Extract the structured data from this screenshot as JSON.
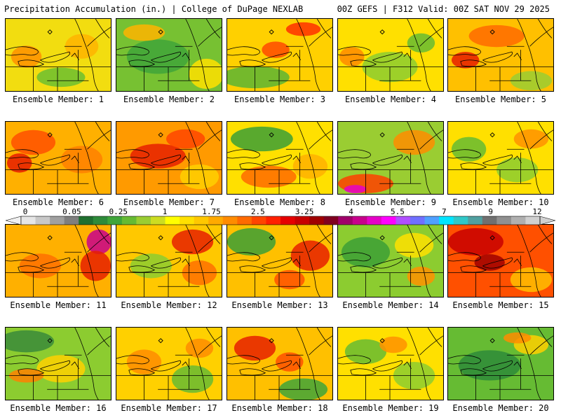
{
  "header": {
    "title": "Precipitation Accumulation (in.) | College of DuPage NEXLAB",
    "run_info": "00Z GEFS | F312 Valid: 00Z SAT NOV 29 2025"
  },
  "colorbar": {
    "labels": [
      "0",
      "0.05",
      "0.25",
      "1",
      "1.75",
      "2.5",
      "3.25",
      "4",
      "5.5",
      "7",
      "9",
      "12"
    ],
    "colors": [
      "#e6e6e6",
      "#c8c8c8",
      "#a0a0a0",
      "#7f7f7f",
      "#1f6f2f",
      "#2e8b3a",
      "#3fa53a",
      "#66bb33",
      "#9acd32",
      "#ccdd22",
      "#ffff00",
      "#ffe100",
      "#ffc800",
      "#ffaa00",
      "#ff8c00",
      "#ff6a00",
      "#ff4500",
      "#ff2000",
      "#e60000",
      "#c80000",
      "#a00000",
      "#800020",
      "#a0006a",
      "#c8008c",
      "#e600c8",
      "#ff00ff",
      "#b050ff",
      "#7070ff",
      "#50a0ff",
      "#00e5ff",
      "#30c8c8",
      "#50a0a0",
      "#707070",
      "#909090",
      "#b0b0b0",
      "#d0d0d0"
    ]
  },
  "members": [
    {
      "label": "Ensemble Member: 1",
      "base": "#f2dd10",
      "blobs": [
        [
          "#ff9000",
          30,
          55,
          22,
          16
        ],
        [
          "#6cc030",
          80,
          85,
          35,
          14
        ],
        [
          "#ffb400",
          110,
          40,
          24,
          18
        ]
      ]
    },
    {
      "label": "Ensemble Member: 2",
      "base": "#77c132",
      "blobs": [
        [
          "#3fa53a",
          60,
          55,
          45,
          25
        ],
        [
          "#ffe100",
          130,
          80,
          25,
          22
        ],
        [
          "#ffb400",
          40,
          20,
          30,
          12
        ]
      ]
    },
    {
      "label": "Ensemble Member: 3",
      "base": "#ffd000",
      "blobs": [
        [
          "#5cb534",
          40,
          85,
          50,
          16
        ],
        [
          "#ff4a00",
          70,
          45,
          20,
          12
        ],
        [
          "#ff3000",
          110,
          15,
          25,
          10
        ]
      ]
    },
    {
      "label": "Ensemble Member: 4",
      "base": "#ffe000",
      "blobs": [
        [
          "#8ccc30",
          75,
          70,
          40,
          22
        ],
        [
          "#ff8a00",
          20,
          55,
          18,
          14
        ],
        [
          "#66bb33",
          120,
          35,
          20,
          14
        ]
      ]
    },
    {
      "label": "Ensemble Member: 5",
      "base": "#ffc000",
      "blobs": [
        [
          "#ff6a00",
          70,
          25,
          40,
          16
        ],
        [
          "#e61c00",
          25,
          60,
          20,
          12
        ],
        [
          "#9acd32",
          120,
          90,
          30,
          14
        ]
      ]
    },
    {
      "label": "Ensemble Member: 6",
      "base": "#ffb000",
      "blobs": [
        [
          "#ff5000",
          40,
          30,
          32,
          18
        ],
        [
          "#e61c00",
          20,
          60,
          18,
          14
        ],
        [
          "#ff8000",
          110,
          55,
          30,
          20
        ]
      ]
    },
    {
      "label": "Ensemble Member: 7",
      "base": "#ff9a00",
      "blobs": [
        [
          "#e62000",
          60,
          50,
          40,
          18
        ],
        [
          "#ffd000",
          120,
          80,
          28,
          18
        ],
        [
          "#ff4500",
          100,
          25,
          28,
          14
        ]
      ]
    },
    {
      "label": "Ensemble Member: 8",
      "base": "#ffe000",
      "blobs": [
        [
          "#3c9f36",
          50,
          25,
          45,
          18
        ],
        [
          "#ff6a00",
          60,
          80,
          40,
          16
        ],
        [
          "#ffb000",
          120,
          65,
          25,
          18
        ]
      ]
    },
    {
      "label": "Ensemble Member: 9",
      "base": "#9acd32",
      "blobs": [
        [
          "#ff4000",
          40,
          90,
          40,
          14
        ],
        [
          "#e600c8",
          25,
          98,
          16,
          6
        ],
        [
          "#ff8c00",
          110,
          30,
          30,
          18
        ]
      ]
    },
    {
      "label": "Ensemble Member: 10",
      "base": "#ffe000",
      "blobs": [
        [
          "#66bb33",
          30,
          40,
          25,
          18
        ],
        [
          "#8ccc30",
          100,
          70,
          30,
          18
        ],
        [
          "#ff9000",
          120,
          25,
          25,
          14
        ]
      ]
    },
    {
      "label": "Ensemble Member: 11",
      "base": "#ffb000",
      "blobs": [
        [
          "#c8008c",
          135,
          25,
          18,
          18
        ],
        [
          "#e62000",
          130,
          60,
          22,
          22
        ],
        [
          "#ff7000",
          50,
          60,
          30,
          18
        ]
      ]
    },
    {
      "label": "Ensemble Member: 12",
      "base": "#ffc800",
      "blobs": [
        [
          "#e62000",
          110,
          25,
          30,
          18
        ],
        [
          "#ff7000",
          120,
          70,
          25,
          18
        ],
        [
          "#8ccc30",
          50,
          60,
          30,
          18
        ]
      ]
    },
    {
      "label": "Ensemble Member: 13",
      "base": "#ffc000",
      "blobs": [
        [
          "#3c9f36",
          35,
          25,
          35,
          20
        ],
        [
          "#e62000",
          120,
          45,
          28,
          22
        ],
        [
          "#ff5000",
          90,
          80,
          22,
          14
        ]
      ]
    },
    {
      "label": "Ensemble Member: 14",
      "base": "#8ccc30",
      "blobs": [
        [
          "#3c9f36",
          40,
          40,
          35,
          22
        ],
        [
          "#ffe000",
          110,
          30,
          28,
          18
        ],
        [
          "#ff9000",
          120,
          75,
          20,
          14
        ]
      ]
    },
    {
      "label": "Ensemble Member: 15",
      "base": "#ff5000",
      "blobs": [
        [
          "#c80000",
          40,
          25,
          40,
          20
        ],
        [
          "#ffc000",
          120,
          80,
          30,
          18
        ],
        [
          "#a00000",
          60,
          55,
          22,
          12
        ]
      ]
    },
    {
      "label": "Ensemble Member: 16",
      "base": "#8ccc30",
      "blobs": [
        [
          "#3a8a3a",
          30,
          20,
          40,
          16
        ],
        [
          "#ffd000",
          80,
          60,
          35,
          20
        ],
        [
          "#ff8000",
          30,
          70,
          25,
          10
        ]
      ]
    },
    {
      "label": "Ensemble Member: 17",
      "base": "#ffd000",
      "blobs": [
        [
          "#ff8c00",
          40,
          50,
          25,
          18
        ],
        [
          "#66bb33",
          110,
          75,
          30,
          20
        ],
        [
          "#ff8c00",
          120,
          30,
          20,
          14
        ]
      ]
    },
    {
      "label": "Ensemble Member: 18",
      "base": "#ffc000",
      "blobs": [
        [
          "#e62000",
          40,
          30,
          30,
          18
        ],
        [
          "#3fa53a",
          110,
          90,
          35,
          16
        ],
        [
          "#ff5000",
          90,
          50,
          20,
          14
        ]
      ]
    },
    {
      "label": "Ensemble Member: 19",
      "base": "#ffe000",
      "blobs": [
        [
          "#66bb33",
          40,
          35,
          30,
          18
        ],
        [
          "#8ccc30",
          110,
          70,
          30,
          20
        ],
        [
          "#ff9000",
          80,
          25,
          20,
          12
        ]
      ]
    },
    {
      "label": "Ensemble Member: 20",
      "base": "#66bb33",
      "blobs": [
        [
          "#2e8b3a",
          60,
          55,
          45,
          22
        ],
        [
          "#ffd000",
          120,
          25,
          25,
          14
        ],
        [
          "#ff8c00",
          100,
          15,
          20,
          8
        ]
      ]
    }
  ]
}
